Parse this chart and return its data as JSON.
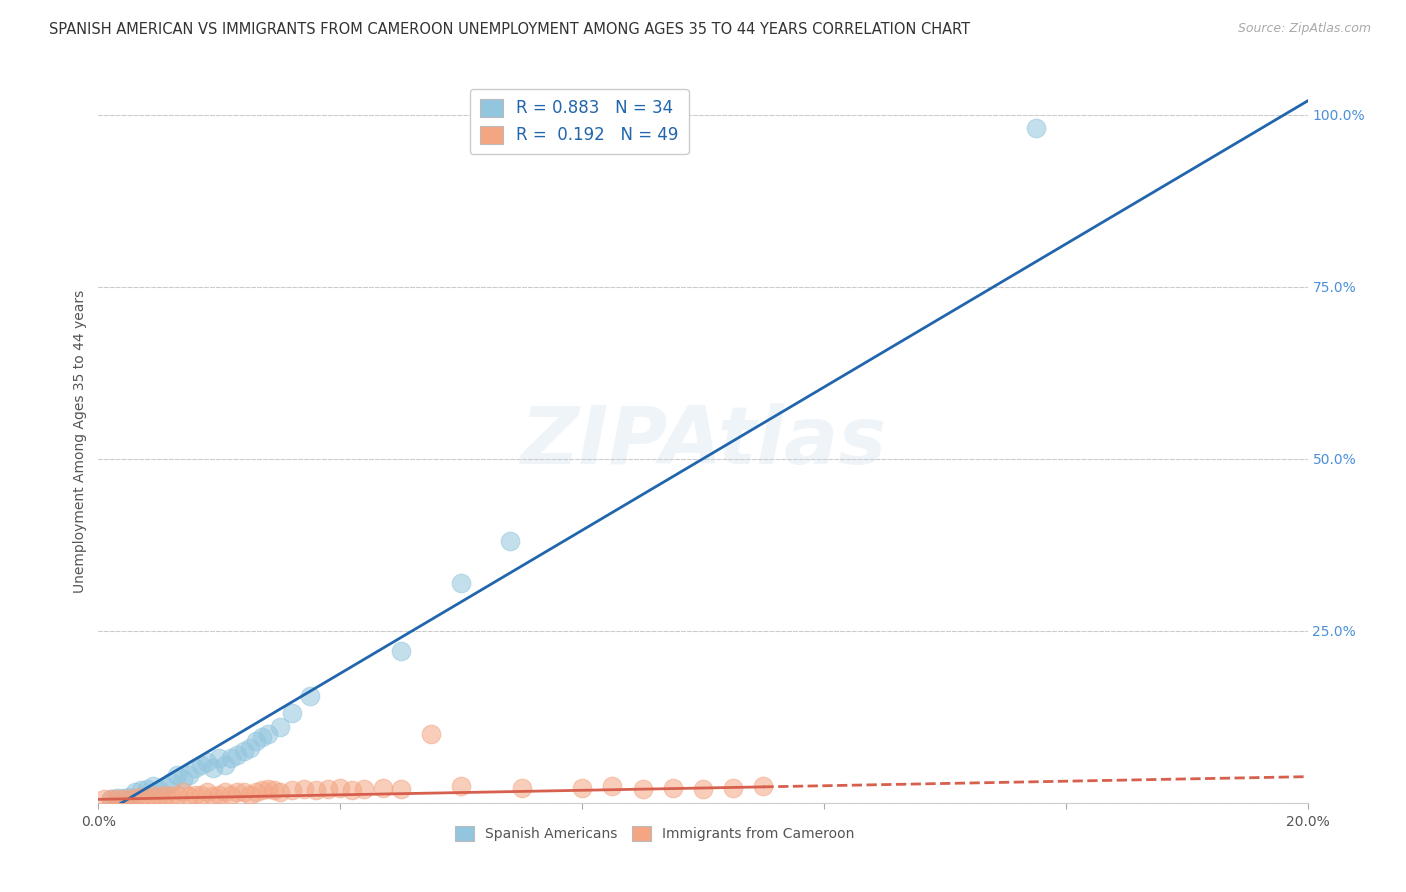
{
  "title": "SPANISH AMERICAN VS IMMIGRANTS FROM CAMEROON UNEMPLOYMENT AMONG AGES 35 TO 44 YEARS CORRELATION CHART",
  "source": "Source: ZipAtlas.com",
  "ylabel": "Unemployment Among Ages 35 to 44 years",
  "x_min": 0.0,
  "x_max": 0.2,
  "y_min": 0.0,
  "y_max": 1.05,
  "x_ticks": [
    0.0,
    0.04,
    0.08,
    0.12,
    0.16,
    0.2
  ],
  "x_tick_labels": [
    "0.0%",
    "",
    "",
    "",
    "",
    "20.0%"
  ],
  "y_tick_labels_right": [
    "",
    "25.0%",
    "50.0%",
    "75.0%",
    "100.0%"
  ],
  "y_tick_positions_right": [
    0.0,
    0.25,
    0.5,
    0.75,
    1.0
  ],
  "blue_color": "#92c5de",
  "pink_color": "#f4a582",
  "blue_line_color": "#2166ac",
  "pink_line_color": "#d6604d",
  "background_color": "#ffffff",
  "grid_color": "#cccccc",
  "legend_R1": "R = 0.883",
  "legend_N1": "N = 34",
  "legend_R2": "R =  0.192",
  "legend_N2": "N = 49",
  "watermark": "ZIPAtlas",
  "legend_label1": "Spanish Americans",
  "legend_label2": "Immigrants from Cameroon",
  "blue_line_x0": 0.0,
  "blue_line_y0": -0.02,
  "blue_line_x1": 0.2,
  "blue_line_y1": 1.02,
  "pink_line_x0": 0.0,
  "pink_line_y0": 0.005,
  "pink_line_x1": 0.2,
  "pink_line_y1": 0.038,
  "blue_scatter_x": [
    0.002,
    0.003,
    0.004,
    0.005,
    0.006,
    0.007,
    0.008,
    0.009,
    0.01,
    0.011,
    0.012,
    0.013,
    0.014,
    0.015,
    0.016,
    0.017,
    0.018,
    0.019,
    0.02,
    0.021,
    0.022,
    0.023,
    0.024,
    0.025,
    0.026,
    0.027,
    0.028,
    0.03,
    0.032,
    0.035,
    0.05,
    0.06,
    0.068,
    0.155
  ],
  "blue_scatter_y": [
    0.005,
    0.007,
    0.007,
    0.008,
    0.015,
    0.018,
    0.02,
    0.025,
    0.018,
    0.025,
    0.03,
    0.04,
    0.035,
    0.04,
    0.05,
    0.055,
    0.06,
    0.05,
    0.065,
    0.055,
    0.065,
    0.07,
    0.075,
    0.08,
    0.09,
    0.095,
    0.1,
    0.11,
    0.13,
    0.155,
    0.22,
    0.32,
    0.38,
    0.98
  ],
  "pink_scatter_x": [
    0.001,
    0.002,
    0.003,
    0.004,
    0.005,
    0.006,
    0.007,
    0.008,
    0.009,
    0.01,
    0.011,
    0.012,
    0.013,
    0.014,
    0.015,
    0.016,
    0.017,
    0.018,
    0.019,
    0.02,
    0.021,
    0.022,
    0.023,
    0.024,
    0.025,
    0.026,
    0.027,
    0.028,
    0.029,
    0.03,
    0.032,
    0.034,
    0.036,
    0.038,
    0.04,
    0.042,
    0.044,
    0.047,
    0.05,
    0.055,
    0.06,
    0.07,
    0.08,
    0.085,
    0.09,
    0.095,
    0.1,
    0.105,
    0.11
  ],
  "pink_scatter_y": [
    0.005,
    0.005,
    0.005,
    0.006,
    0.006,
    0.007,
    0.008,
    0.008,
    0.01,
    0.01,
    0.012,
    0.01,
    0.012,
    0.015,
    0.01,
    0.012,
    0.012,
    0.015,
    0.01,
    0.012,
    0.015,
    0.012,
    0.015,
    0.015,
    0.012,
    0.015,
    0.018,
    0.02,
    0.018,
    0.015,
    0.018,
    0.02,
    0.018,
    0.02,
    0.022,
    0.018,
    0.02,
    0.022,
    0.02,
    0.1,
    0.025,
    0.022,
    0.022,
    0.025,
    0.02,
    0.022,
    0.02,
    0.022,
    0.025
  ],
  "title_fontsize": 10.5,
  "source_fontsize": 9,
  "axis_fontsize": 10,
  "tick_fontsize": 10
}
